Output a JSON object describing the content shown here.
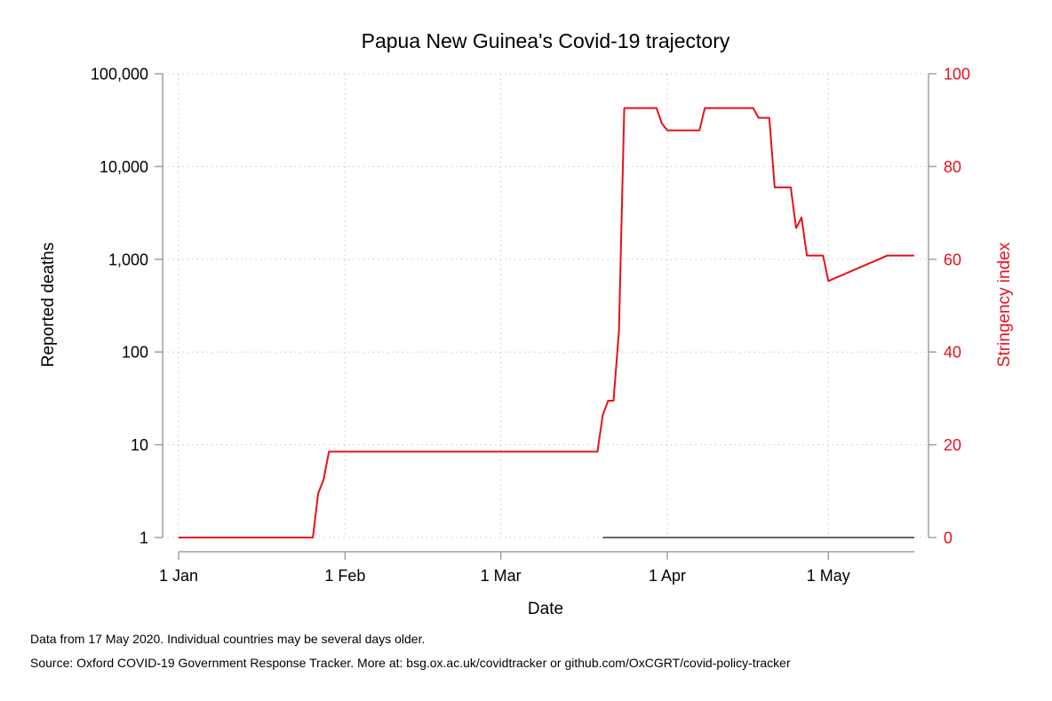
{
  "chart_data": {
    "type": "line",
    "title": "Papua New Guinea's Covid-19 trajectory",
    "xlabel": "Date",
    "ylabel_left": "Reported deaths",
    "ylabel_right": "Stringency index",
    "x_ticks": [
      "1 Jan",
      "1 Feb",
      "1 Mar",
      "1 Apr",
      "1 May"
    ],
    "x_tick_dates": [
      "2020-01-01",
      "2020-02-01",
      "2020-03-01",
      "2020-04-01",
      "2020-05-01"
    ],
    "xlim": [
      "2020-01-01",
      "2020-05-17"
    ],
    "y_left_scale": "log",
    "y_left_ticks": [
      "1",
      "10",
      "100",
      "1,000",
      "10,000",
      "100,000"
    ],
    "y_left_tick_values": [
      1,
      10,
      100,
      1000,
      10000,
      100000
    ],
    "y_left_lim": [
      1,
      100000
    ],
    "y_right_ticks": [
      "0",
      "20",
      "40",
      "60",
      "80",
      "100"
    ],
    "y_right_tick_values": [
      0,
      20,
      40,
      60,
      80,
      100
    ],
    "y_right_lim": [
      0,
      100
    ],
    "grid": true,
    "series": [
      {
        "axis": "right",
        "color": "#e8101c",
        "x": [
          "2020-01-01",
          "2020-01-26",
          "2020-01-27",
          "2020-01-28",
          "2020-01-29",
          "2020-03-19",
          "2020-03-20",
          "2020-03-21",
          "2020-03-22",
          "2020-03-23",
          "2020-03-24",
          "2020-03-25",
          "2020-03-26",
          "2020-03-27",
          "2020-03-28",
          "2020-03-29",
          "2020-03-30",
          "2020-03-31",
          "2020-04-01",
          "2020-04-02",
          "2020-04-03",
          "2020-04-04",
          "2020-04-05",
          "2020-04-06",
          "2020-04-07",
          "2020-04-08",
          "2020-04-09",
          "2020-04-10",
          "2020-04-11",
          "2020-04-12",
          "2020-04-13",
          "2020-04-14",
          "2020-04-15",
          "2020-04-16",
          "2020-04-17",
          "2020-04-18",
          "2020-04-19",
          "2020-04-20",
          "2020-04-21",
          "2020-04-22",
          "2020-04-23",
          "2020-04-24",
          "2020-04-25",
          "2020-04-26",
          "2020-04-27",
          "2020-04-28",
          "2020-04-29",
          "2020-04-30",
          "2020-05-01",
          "2020-05-12",
          "2020-05-13",
          "2020-05-14",
          "2020-05-15",
          "2020-05-16",
          "2020-05-17"
        ],
        "values": [
          0,
          0,
          9.5,
          12.5,
          18.5,
          18.5,
          26.5,
          29.5,
          29.5,
          44.5,
          92.6,
          92.6,
          92.6,
          92.6,
          92.6,
          92.6,
          92.6,
          89.3,
          87.8,
          87.8,
          87.8,
          87.8,
          87.8,
          87.8,
          87.8,
          92.6,
          92.6,
          92.6,
          92.6,
          92.6,
          92.6,
          92.6,
          92.6,
          92.6,
          92.6,
          90.5,
          90.5,
          90.5,
          75.5,
          75.5,
          75.5,
          75.5,
          66.7,
          69.0,
          60.8,
          60.8,
          60.8,
          60.8,
          55.3,
          60.8,
          60.8,
          60.8,
          60.8,
          60.8,
          60.8
        ]
      },
      {
        "axis": "left",
        "color": "#666666",
        "x": [
          "2020-03-20",
          "2020-05-17"
        ],
        "values": [
          1,
          1
        ]
      }
    ]
  },
  "notes": {
    "line1": "Data from 17 May 2020. Individual countries may be several days older.",
    "line2": "Source: Oxford COVID-19 Government Response Tracker. More at: bsg.ox.ac.uk/covidtracker or github.com/OxCGRT/covid-policy-tracker"
  }
}
